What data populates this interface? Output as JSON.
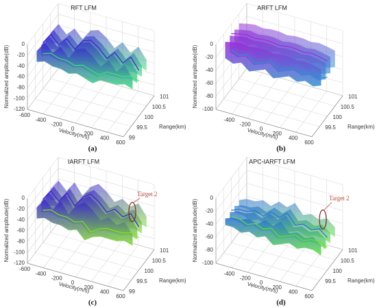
{
  "chart_data": [
    {
      "type": "surface3d",
      "title": "RFT LFM",
      "caption": "(a)",
      "zlabel": "Normalized amplitude(dB)",
      "xlabel": "Velocity(m/s)",
      "ylabel": "Range(km)",
      "xlim": [
        -600,
        600
      ],
      "xticks": [
        -600,
        -400,
        -200,
        0,
        200,
        400,
        600
      ],
      "ylim": [
        99,
        101
      ],
      "yticks": [
        99,
        99.5,
        100,
        100.5,
        101
      ],
      "zlim": [
        -120,
        0
      ],
      "zticks": [
        -120,
        -100,
        -80,
        -60,
        -40,
        -20,
        0
      ],
      "grid": true,
      "x": [
        -600,
        -500,
        -400,
        -300,
        -200,
        -100,
        0,
        100,
        200,
        300,
        400,
        500,
        600
      ],
      "series": [
        {
          "color": "#3a1fd6",
          "values": [
            -35,
            -15,
            -30,
            -15,
            -30,
            -10,
            -5,
            -15,
            -30,
            -15,
            -30,
            -15,
            -35
          ]
        },
        {
          "color": "#3ee07a",
          "values": [
            -55,
            -50,
            -55,
            -55,
            -60,
            -55,
            -60,
            -65,
            -55,
            -55,
            -55,
            -50,
            -55
          ]
        }
      ]
    },
    {
      "type": "surface3d",
      "title": "ARFT LFM",
      "caption": "(b)",
      "zlabel": "Normalized amplitude(dB)",
      "xlabel": "Velocity(m/s)",
      "ylabel": "Range(km)",
      "xlim": [
        -600,
        600
      ],
      "xticks": [
        -400,
        -200,
        0,
        200,
        400,
        600
      ],
      "ylim": [
        99,
        101
      ],
      "yticks": [
        99.5,
        100,
        100.5,
        101
      ],
      "zlim": [
        -100,
        0
      ],
      "zticks": [
        -100,
        -80,
        -60,
        -40,
        -20,
        0
      ],
      "grid": true,
      "x": [
        -600,
        -500,
        -400,
        -300,
        -200,
        -100,
        0,
        100,
        200,
        300,
        400,
        500,
        600
      ],
      "series": [
        {
          "color": "#9b2bd8",
          "values": [
            -15,
            -12,
            -10,
            -12,
            -10,
            -10,
            -12,
            -10,
            -10,
            -12,
            -10,
            -12,
            -15
          ]
        },
        {
          "color": "#2f8fd0",
          "values": [
            -40,
            -45,
            -40,
            -50,
            -45,
            -40,
            -50,
            -45,
            -40,
            -45,
            -40,
            -45,
            -40
          ]
        }
      ]
    },
    {
      "type": "surface3d",
      "title": "IARFT LFM",
      "caption": "(c)",
      "annotation": "Target 2",
      "zlabel": "Normalized amplitude(dB)",
      "xlabel": "Velocity(m/s)",
      "ylabel": "Range(km)",
      "xlim": [
        -600,
        600
      ],
      "xticks": [
        -600,
        -400,
        -200,
        0,
        200,
        400,
        600
      ],
      "ylim": [
        99,
        101
      ],
      "yticks": [
        99,
        99.5,
        100,
        100.5,
        101
      ],
      "zlim": [
        -120,
        0
      ],
      "zticks": [
        -120,
        -100,
        -80,
        -60,
        -40,
        -20,
        0
      ],
      "grid": true,
      "x": [
        -600,
        -500,
        -400,
        -300,
        -200,
        -100,
        0,
        100,
        200,
        300,
        400,
        500,
        600
      ],
      "series": [
        {
          "color": "#3a1fd6",
          "values": [
            -40,
            -20,
            -35,
            -15,
            -35,
            -15,
            -5,
            -15,
            -30,
            -20,
            -30,
            -20,
            -40
          ]
        },
        {
          "color": "#7fe02a",
          "values": [
            -60,
            -55,
            -60,
            -60,
            -65,
            -60,
            -75,
            -65,
            -60,
            -60,
            -60,
            -55,
            -60
          ]
        }
      ]
    },
    {
      "type": "surface3d",
      "title": "APC-IARFT LFM",
      "caption": "(d)",
      "annotation": "Target 2",
      "zlabel": "Normalized amplitude(dB)",
      "xlabel": "Velocity(m/s)",
      "ylabel": "Range(km)",
      "xlim": [
        -600,
        600
      ],
      "xticks": [
        -400,
        -200,
        0,
        200,
        400,
        600
      ],
      "ylim": [
        99,
        101
      ],
      "yticks": [
        99.5,
        100,
        100.5,
        101
      ],
      "zlim": [
        -100,
        0
      ],
      "zticks": [
        -100,
        -80,
        -60,
        -40,
        -20,
        0
      ],
      "grid": true,
      "x": [
        -600,
        -500,
        -400,
        -300,
        -200,
        -100,
        0,
        100,
        200,
        300,
        400,
        500,
        600
      ],
      "series": [
        {
          "color": "#2a6fd6",
          "values": [
            -50,
            -45,
            -45,
            -40,
            -45,
            -35,
            -40,
            -30,
            -45,
            -40,
            -45,
            -40,
            -50
          ]
        },
        {
          "color": "#5ee03a",
          "values": [
            -60,
            -60,
            -65,
            -60,
            -65,
            -60,
            -70,
            -65,
            -60,
            -65,
            -60,
            -60,
            -65
          ]
        }
      ]
    }
  ]
}
